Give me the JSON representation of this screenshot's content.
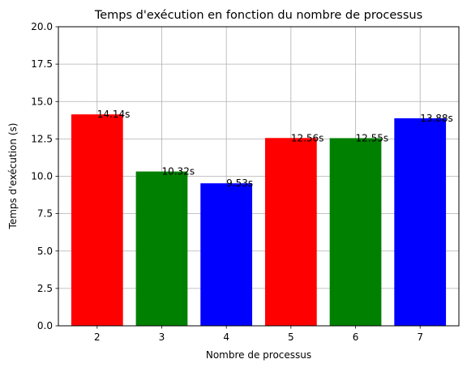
{
  "chart_data": {
    "type": "bar",
    "title": "Temps d'exécution en fonction du nombre de processus",
    "xlabel": "Nombre de processus",
    "ylabel": "Temps d'exécution (s)",
    "categories": [
      "2",
      "3",
      "4",
      "5",
      "6",
      "7"
    ],
    "values": [
      14.14,
      10.32,
      9.53,
      12.56,
      12.55,
      13.88
    ],
    "value_labels": [
      "14.14s",
      "10.32s",
      "9.53s",
      "12.56s",
      "12.55s",
      "13.88s"
    ],
    "bar_colors": [
      "#ff0000",
      "#008000",
      "#0000ff",
      "#ff0000",
      "#008000",
      "#0000ff"
    ],
    "ylim": [
      0,
      20
    ],
    "yticks": [
      0.0,
      2.5,
      5.0,
      7.5,
      10.0,
      12.5,
      15.0,
      17.5,
      20.0
    ],
    "ytick_labels": [
      "0.0",
      "2.5",
      "5.0",
      "7.5",
      "10.0",
      "12.5",
      "15.0",
      "17.5",
      "20.0"
    ],
    "grid": true
  }
}
